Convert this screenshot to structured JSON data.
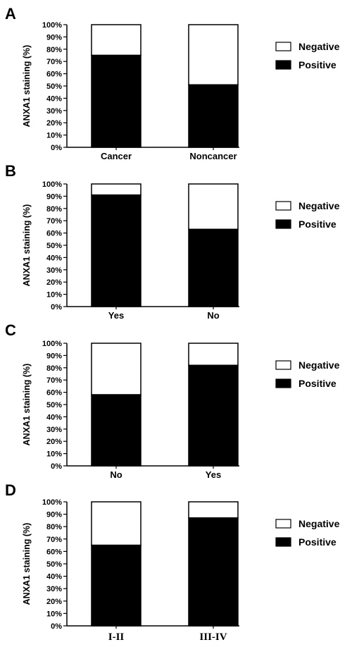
{
  "chart_data": [
    {
      "panel": "A",
      "type": "bar",
      "stacked": true,
      "categories": [
        "Cancer",
        "Noncancer"
      ],
      "series": [
        {
          "name": "Positive",
          "values": [
            75,
            51
          ],
          "color": "#000000"
        },
        {
          "name": "Negative",
          "values": [
            25,
            49
          ],
          "color": "#ffffff"
        }
      ],
      "ylabel": "ANXA1 staining (%)",
      "xlabel": "",
      "ylim": [
        0,
        100
      ],
      "yticks": [
        "0%",
        "10%",
        "20%",
        "30%",
        "40%",
        "50%",
        "60%",
        "70%",
        "80%",
        "90%",
        "100%"
      ],
      "legend": [
        "Negative",
        "Positive"
      ],
      "legend_position": "right"
    },
    {
      "panel": "B",
      "type": "bar",
      "stacked": true,
      "categories": [
        "Yes",
        "No"
      ],
      "series": [
        {
          "name": "Positive",
          "values": [
            91,
            63
          ],
          "color": "#000000"
        },
        {
          "name": "Negative",
          "values": [
            9,
            37
          ],
          "color": "#ffffff"
        }
      ],
      "ylabel": "ANXA1 staining (%)",
      "xlabel": "",
      "ylim": [
        0,
        100
      ],
      "yticks": [
        "0%",
        "10%",
        "20%",
        "30%",
        "40%",
        "50%",
        "60%",
        "70%",
        "80%",
        "90%",
        "100%"
      ],
      "legend": [
        "Negative",
        "Positive"
      ],
      "legend_position": "right"
    },
    {
      "panel": "C",
      "type": "bar",
      "stacked": true,
      "categories": [
        "No",
        "Yes"
      ],
      "series": [
        {
          "name": "Positive",
          "values": [
            58,
            82
          ],
          "color": "#000000"
        },
        {
          "name": "Negative",
          "values": [
            42,
            18
          ],
          "color": "#ffffff"
        }
      ],
      "ylabel": "ANXA1 staining (%)",
      "xlabel": "",
      "ylim": [
        0,
        100
      ],
      "yticks": [
        "0%",
        "10%",
        "20%",
        "30%",
        "40%",
        "50%",
        "60%",
        "70%",
        "80%",
        "90%",
        "100%"
      ],
      "legend": [
        "Negative",
        "Positive"
      ],
      "legend_position": "right"
    },
    {
      "panel": "D",
      "type": "bar",
      "stacked": true,
      "categories": [
        "I-II",
        "III-IV"
      ],
      "series": [
        {
          "name": "Positive",
          "values": [
            65,
            87
          ],
          "color": "#000000"
        },
        {
          "name": "Negative",
          "values": [
            35,
            13
          ],
          "color": "#ffffff"
        }
      ],
      "ylabel": "ANXA1 staining (%)",
      "xlabel": "",
      "ylim": [
        0,
        100
      ],
      "yticks": [
        "0%",
        "10%",
        "20%",
        "30%",
        "40%",
        "50%",
        "60%",
        "70%",
        "80%",
        "90%",
        "100%"
      ],
      "legend": [
        "Negative",
        "Positive"
      ],
      "legend_position": "right"
    }
  ]
}
